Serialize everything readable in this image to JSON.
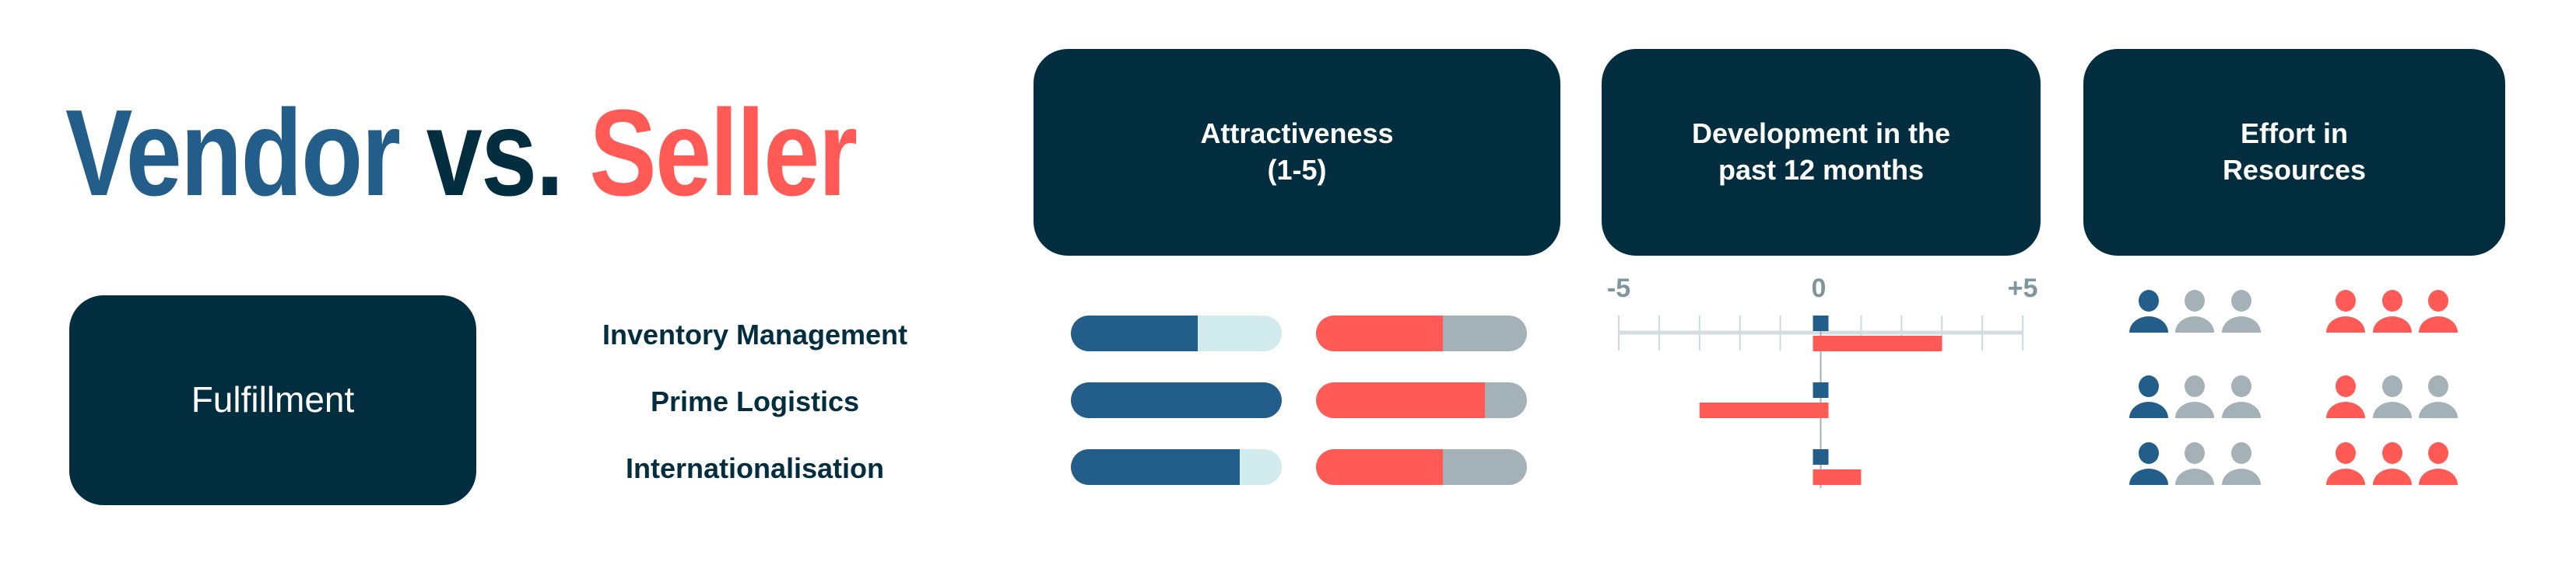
{
  "title": {
    "part1": "Vendor",
    "part2": "vs.",
    "part3": "Seller"
  },
  "category": "Fulfillment",
  "headers": {
    "attractiveness": "Attractiveness\n(1-5)",
    "development": "Development in the\npast 12 months",
    "effort": "Effort in\nResources"
  },
  "colors": {
    "vendor": "#235d8a",
    "vendor_rest": "#d2ebec",
    "seller": "#ff5a55",
    "seller_rest": "#a4b2b8",
    "dark": "#032e3f",
    "axis": "#7f969f"
  },
  "chart_data": {
    "type": "table",
    "rows": [
      "Inventory Management",
      "Prime Logistics",
      "Internationalisation"
    ],
    "attractiveness": {
      "scale": [
        1,
        5
      ],
      "vendor": [
        3,
        5,
        4
      ],
      "seller": [
        3,
        4,
        3
      ]
    },
    "development": {
      "type": "bar",
      "xlim": [
        -5,
        5
      ],
      "tick_labels": [
        "-5",
        "0",
        "+5"
      ],
      "ticks": [
        -5,
        -4,
        -3,
        -2,
        -1,
        0,
        1,
        2,
        3,
        4,
        5
      ],
      "vendor": [
        0,
        0,
        0
      ],
      "seller": [
        3,
        -3,
        1
      ]
    },
    "effort": {
      "max": 3,
      "vendor": [
        1,
        1,
        1
      ],
      "seller": [
        3,
        1,
        3
      ],
      "icon": "person-icon"
    }
  }
}
